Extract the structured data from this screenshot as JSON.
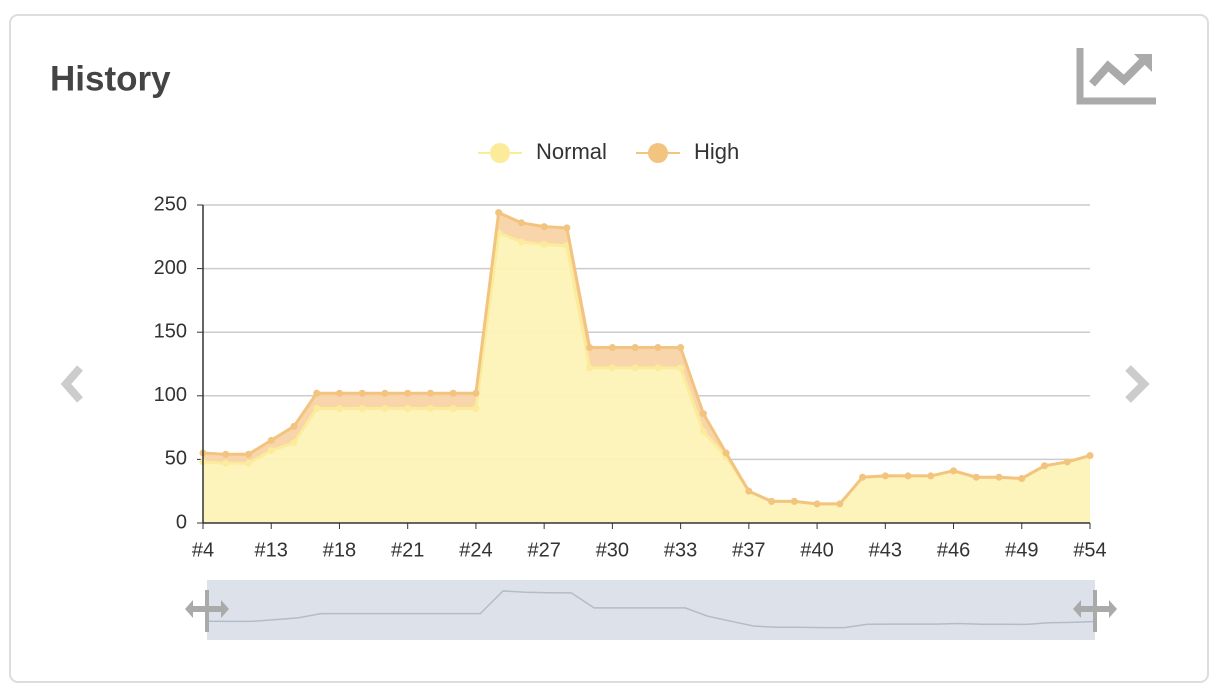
{
  "title": "History",
  "chart_data": {
    "type": "stacked-area",
    "categories": [
      "#4",
      null,
      null,
      "#13",
      null,
      null,
      "#18",
      null,
      null,
      "#21",
      null,
      null,
      "#24",
      null,
      null,
      "#27",
      null,
      null,
      "#30",
      null,
      null,
      "#33",
      null,
      null,
      "#37",
      null,
      null,
      "#40",
      null,
      null,
      "#43",
      null,
      null,
      "#46",
      null,
      null,
      "#49",
      null,
      null,
      "#54"
    ],
    "series": [
      {
        "name": "Normal",
        "color": "#fbeb9a",
        "values": [
          48,
          47,
          47,
          57,
          63,
          90,
          90,
          90,
          90,
          90,
          90,
          90,
          90,
          228,
          221,
          219,
          218,
          122,
          122,
          122,
          122,
          122,
          72,
          52,
          25,
          17,
          17,
          15,
          15,
          36,
          37,
          37,
          37,
          41,
          36,
          36,
          35,
          45,
          48,
          53
        ]
      },
      {
        "name": "High",
        "color": "#f2c47f",
        "values": [
          7,
          7,
          7,
          8,
          13,
          12,
          12,
          12,
          12,
          12,
          12,
          12,
          12,
          16,
          15,
          14,
          14,
          16,
          16,
          16,
          16,
          16,
          14,
          3,
          0,
          0,
          0,
          0,
          0,
          0,
          0,
          0,
          0,
          0,
          0,
          0,
          0,
          0,
          0,
          0
        ]
      }
    ],
    "ylim": [
      0,
      250
    ],
    "yticks": [
      0,
      50,
      100,
      150,
      200,
      250
    ],
    "grid": true
  }
}
